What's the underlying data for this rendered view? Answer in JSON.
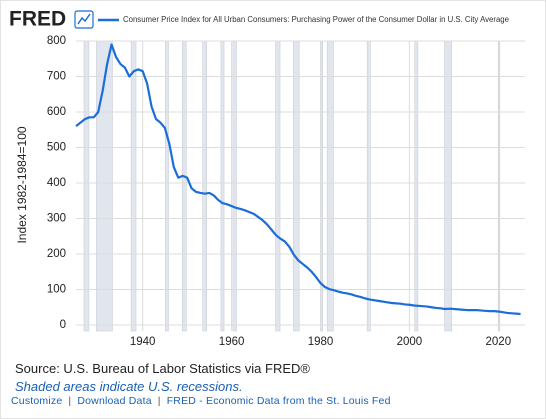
{
  "chart_data": {
    "type": "line",
    "logo": "FRED",
    "ylabel": "Index 1982-1984=100",
    "source": "Source: U.S. Bureau of Labor Statistics via FRED®",
    "note": "Shaded areas indicate U.S. recessions.",
    "footer": {
      "links": [
        "Customize",
        "Download Data",
        "FRED - Economic Data from the St. Louis Fed"
      ],
      "separator": "|"
    },
    "xlim": [
      1925,
      2026
    ],
    "xticks": [
      1940,
      1960,
      1980,
      2000,
      2020
    ],
    "ylim": [
      0,
      800
    ],
    "yticks": [
      0,
      100,
      200,
      300,
      400,
      500,
      600,
      700,
      800
    ],
    "grid": true,
    "recession_color": "#e1e6ee",
    "recessions": [
      [
        1926.8,
        1927.9
      ],
      [
        1929.6,
        1933.2
      ],
      [
        1937.4,
        1938.5
      ],
      [
        1945.1,
        1945.8
      ],
      [
        1948.9,
        1949.8
      ],
      [
        1953.5,
        1954.4
      ],
      [
        1957.6,
        1958.3
      ],
      [
        1960.3,
        1961.1
      ],
      [
        1969.9,
        1970.9
      ],
      [
        1973.9,
        1975.2
      ],
      [
        1980.0,
        1980.5
      ],
      [
        1981.5,
        1982.9
      ],
      [
        1990.5,
        1991.2
      ],
      [
        2001.2,
        2001.9
      ],
      [
        2007.9,
        2009.5
      ],
      [
        2020.1,
        2020.3
      ]
    ],
    "x": [
      1925,
      1926,
      1927,
      1928,
      1929,
      1930,
      1931,
      1932,
      1933,
      1934,
      1935,
      1936,
      1937,
      1938,
      1939,
      1940,
      1941,
      1942,
      1943,
      1944,
      1945,
      1946,
      1947,
      1948,
      1949,
      1950,
      1951,
      1952,
      1953,
      1954,
      1955,
      1956,
      1957,
      1958,
      1959,
      1960,
      1961,
      1962,
      1963,
      1964,
      1965,
      1966,
      1967,
      1968,
      1969,
      1970,
      1971,
      1972,
      1973,
      1974,
      1975,
      1976,
      1977,
      1978,
      1979,
      1980,
      1981,
      1982,
      1983,
      1984,
      1985,
      1986,
      1987,
      1988,
      1989,
      1990,
      1991,
      1992,
      1993,
      1994,
      1995,
      1996,
      1997,
      1998,
      1999,
      2000,
      2001,
      2002,
      2003,
      2004,
      2005,
      2006,
      2007,
      2008,
      2009,
      2010,
      2011,
      2012,
      2013,
      2014,
      2015,
      2016,
      2017,
      2018,
      2019,
      2020,
      2021,
      2022,
      2023,
      2024,
      2025
    ],
    "series": [
      {
        "name": "Consumer Price Index for All Urban Consumers: Purchasing Power of the Consumer Dollar in U.S. City Average",
        "color": "#1a6ed8",
        "values": [
          560,
          570,
          580,
          585,
          585,
          600,
          660,
          735,
          790,
          755,
          735,
          725,
          700,
          715,
          720,
          715,
          680,
          615,
          580,
          570,
          555,
          510,
          445,
          415,
          420,
          415,
          385,
          375,
          372,
          370,
          372,
          365,
          352,
          343,
          340,
          335,
          330,
          327,
          323,
          318,
          313,
          304,
          295,
          283,
          268,
          253,
          243,
          235,
          220,
          198,
          182,
          172,
          162,
          150,
          135,
          118,
          107,
          101,
          98,
          94,
          91,
          89,
          86,
          82,
          79,
          75,
          72,
          70,
          68,
          66,
          64,
          62,
          61,
          60,
          58,
          57,
          55,
          54,
          53,
          52,
          50,
          48,
          47,
          45,
          46,
          45,
          44,
          43,
          42,
          42,
          42,
          41,
          40,
          39,
          39,
          38,
          36,
          34,
          33,
          32,
          31
        ]
      }
    ]
  }
}
